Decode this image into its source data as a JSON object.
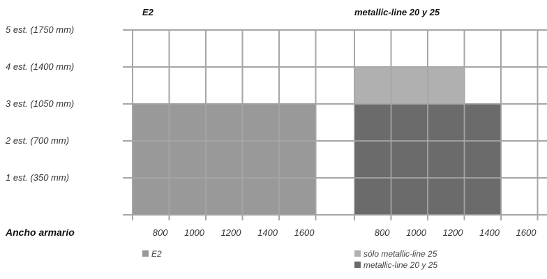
{
  "chart_data": {
    "type": "heatmap",
    "row_labels": [
      "5 est. (1750 mm)",
      "4 est. (1400 mm)",
      "3 est. (1050 mm)",
      "2 est. (700 mm)",
      "1 est. (350 mm)"
    ],
    "x_axis_title": "Ancho armario",
    "legend": [
      {
        "key": "e2",
        "label": "E2",
        "color": "#999999"
      },
      {
        "key": "ml25",
        "label": "sólo metallic-line 25",
        "color": "#b0b0b0"
      },
      {
        "key": "ml2025",
        "label": "metallic-line 20 y 25",
        "color": "#6b6b6b"
      }
    ],
    "panels": [
      {
        "title": "E2",
        "widths": [
          "800",
          "1000",
          "1200",
          "1400",
          "1600"
        ],
        "available": [
          {
            "series": "e2",
            "width": "800",
            "max_shelves": 3
          },
          {
            "series": "e2",
            "width": "1000",
            "max_shelves": 3
          },
          {
            "series": "e2",
            "width": "1200",
            "max_shelves": 3
          },
          {
            "series": "e2",
            "width": "1400",
            "max_shelves": 3
          },
          {
            "series": "e2",
            "width": "1600",
            "max_shelves": 3
          }
        ]
      },
      {
        "title": "metallic-line 20 y 25",
        "widths": [
          "800",
          "1000",
          "1200",
          "1400",
          "1600"
        ],
        "available": [
          {
            "series": "ml2025",
            "width": "800",
            "max_shelves": 3
          },
          {
            "series": "ml2025",
            "width": "1000",
            "max_shelves": 3
          },
          {
            "series": "ml2025",
            "width": "1200",
            "max_shelves": 3
          },
          {
            "series": "ml2025",
            "width": "1400",
            "max_shelves": 3
          },
          {
            "series": "ml25",
            "width": "800",
            "min_shelves": 4,
            "max_shelves": 4
          },
          {
            "series": "ml25",
            "width": "1000",
            "min_shelves": 4,
            "max_shelves": 4
          },
          {
            "series": "ml25",
            "width": "1200",
            "min_shelves": 4,
            "max_shelves": 4
          }
        ]
      }
    ],
    "grid": true
  }
}
